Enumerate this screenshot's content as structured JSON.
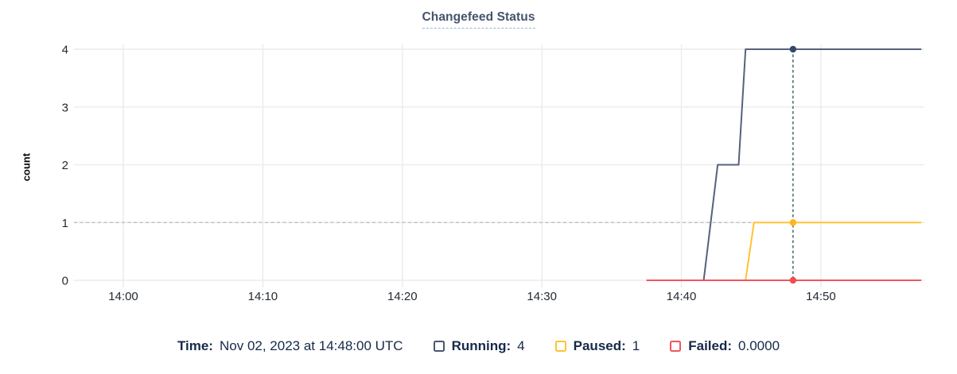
{
  "title": "Changefeed Status",
  "axes": {
    "y_label": "count",
    "x_tick_labels": [
      "14:00",
      "14:10",
      "14:20",
      "14:30",
      "14:40",
      "14:50"
    ],
    "y_tick_labels": [
      "0",
      "1",
      "2",
      "3",
      "4"
    ]
  },
  "chart_data": {
    "type": "line",
    "title": "Changefeed Status",
    "xlabel": "",
    "ylabel": "count",
    "ylim": [
      0,
      4
    ],
    "grid": true,
    "x_unit": "minutes after 14:00 on Nov 02, 2023 (UTC)",
    "x_domain_minutes": [
      -3.5,
      57.2
    ],
    "x_ticks": [
      {
        "t": 0,
        "label": "14:00"
      },
      {
        "t": 10,
        "label": "14:10"
      },
      {
        "t": 20,
        "label": "14:20"
      },
      {
        "t": 30,
        "label": "14:30"
      },
      {
        "t": 40,
        "label": "14:40"
      },
      {
        "t": 50,
        "label": "14:50"
      }
    ],
    "y_ticks": [
      0,
      1,
      2,
      3,
      4
    ],
    "series": [
      {
        "name": "Running",
        "color": "#56617b",
        "points": [
          [
            37.5,
            0
          ],
          [
            41.6,
            0
          ],
          [
            42.6,
            2
          ],
          [
            44.1,
            2
          ],
          [
            44.6,
            4
          ],
          [
            57.2,
            4
          ]
        ]
      },
      {
        "name": "Paused",
        "color": "#ffc233",
        "points": [
          [
            37.5,
            0
          ],
          [
            44.6,
            0
          ],
          [
            45.2,
            1
          ],
          [
            57.2,
            1
          ]
        ]
      },
      {
        "name": "Failed",
        "color": "#f2555b",
        "points": [
          [
            37.5,
            0
          ],
          [
            57.2,
            0
          ]
        ]
      }
    ],
    "hover_hline_value": 1,
    "hline_color": "#b9c2cb",
    "crosshair": {
      "t": 48,
      "time_label": "Nov 02, 2023 at 14:48:00 UTC",
      "line_color": "#3c5a63",
      "points": [
        {
          "series": "Running",
          "v": 4,
          "dot_color": "#33486b"
        },
        {
          "series": "Paused",
          "v": 1,
          "dot_color": "#ffb521"
        },
        {
          "series": "Failed",
          "v": 0,
          "dot_color": "#ef4f4e"
        }
      ]
    },
    "legend_position": "bottom"
  },
  "legend": {
    "time_label": "Time:",
    "time_value": "Nov 02, 2023 at 14:48:00 UTC",
    "items": [
      {
        "label": "Running:",
        "value": "4",
        "color": "#475872"
      },
      {
        "label": "Paused:",
        "value": "1",
        "color": "#ffc333"
      },
      {
        "label": "Failed:",
        "value": "0.0000",
        "color": "#f2555c"
      }
    ]
  },
  "colors": {
    "title": "#44546d",
    "tick_text": "#242a33",
    "gridline": "#ececec",
    "legend_text": "#16294a"
  }
}
